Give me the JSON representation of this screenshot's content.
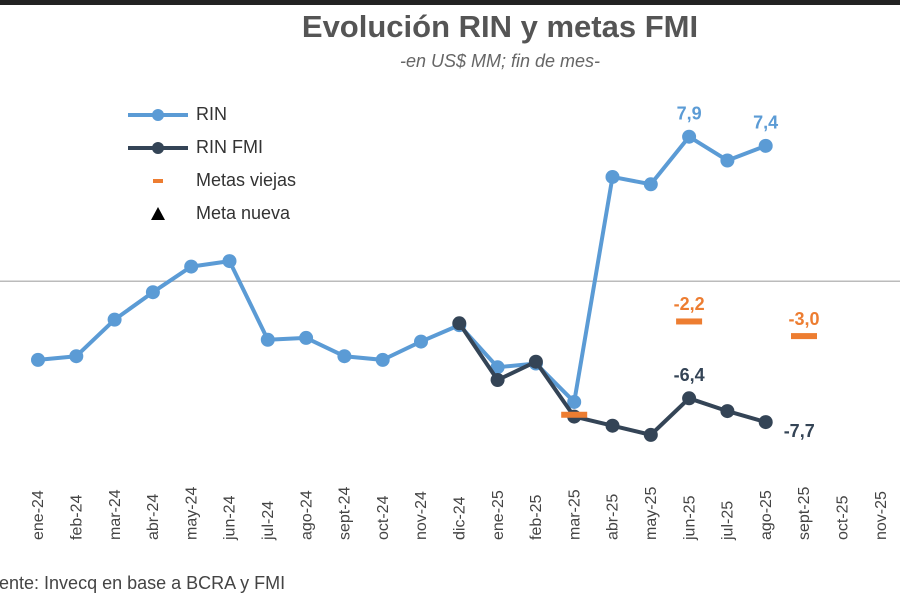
{
  "chart_data": {
    "type": "line",
    "title": "Evolución RIN y metas FMI",
    "subtitle": "-en US$ MM; fin de mes-",
    "source": "Fuente: Invecq en base a BCRA y FMI",
    "categories": [
      "ene-24",
      "feb-24",
      "mar-24",
      "abr-24",
      "may-24",
      "jun-24",
      "jul-24",
      "ago-24",
      "sept-24",
      "oct-24",
      "nov-24",
      "dic-24",
      "ene-25",
      "feb-25",
      "mar-25",
      "abr-25",
      "may-25",
      "jun-25",
      "jul-25",
      "ago-25",
      "sept-25",
      "oct-25",
      "nov-25"
    ],
    "ylim": [
      -9.5,
      11
    ],
    "zero_line": true,
    "series": [
      {
        "name": "RIN",
        "color": "#5b9bd5",
        "marker": "circle",
        "values": [
          -4.3,
          -4.1,
          -2.1,
          -0.6,
          0.8,
          1.1,
          -3.2,
          -3.1,
          -4.1,
          -4.3,
          -3.3,
          -2.4,
          -4.7,
          -4.5,
          -6.6,
          5.7,
          5.3,
          7.9,
          6.6,
          7.4,
          null,
          null,
          null
        ],
        "value_labels": [
          null,
          null,
          null,
          null,
          null,
          null,
          null,
          null,
          null,
          null,
          null,
          null,
          null,
          null,
          null,
          null,
          null,
          "7,9",
          null,
          "7,4",
          null,
          null,
          null
        ]
      },
      {
        "name": "RIN FMI",
        "color": "#344456",
        "marker": "circle",
        "values": [
          null,
          null,
          null,
          null,
          null,
          null,
          null,
          null,
          null,
          null,
          null,
          -2.3,
          -5.4,
          -4.4,
          -7.4,
          -7.9,
          -8.4,
          -6.4,
          -7.1,
          -7.7,
          null,
          null,
          null
        ],
        "value_labels": [
          null,
          null,
          null,
          null,
          null,
          null,
          null,
          null,
          null,
          null,
          null,
          null,
          null,
          null,
          null,
          null,
          null,
          "-6,4",
          null,
          "-7,7",
          null,
          null,
          null
        ]
      },
      {
        "name": "Metas viejas",
        "color": "#ed7d31",
        "marker": "dash",
        "values": [
          null,
          null,
          null,
          null,
          null,
          null,
          null,
          null,
          null,
          null,
          null,
          null,
          null,
          null,
          -7.3,
          null,
          null,
          -2.2,
          null,
          null,
          -3.0,
          null,
          null
        ],
        "value_labels": [
          null,
          null,
          null,
          null,
          null,
          null,
          null,
          null,
          null,
          null,
          null,
          null,
          null,
          null,
          null,
          null,
          null,
          "-2,2",
          null,
          null,
          "-3,0",
          null,
          null
        ]
      },
      {
        "name": "Meta nueva",
        "color": "#000000",
        "marker": "triangle",
        "values": [
          null,
          null,
          null,
          null,
          null,
          null,
          null,
          null,
          null,
          null,
          null,
          null,
          null,
          null,
          null,
          null,
          null,
          null,
          null,
          null,
          null,
          null,
          null
        ]
      }
    ]
  }
}
